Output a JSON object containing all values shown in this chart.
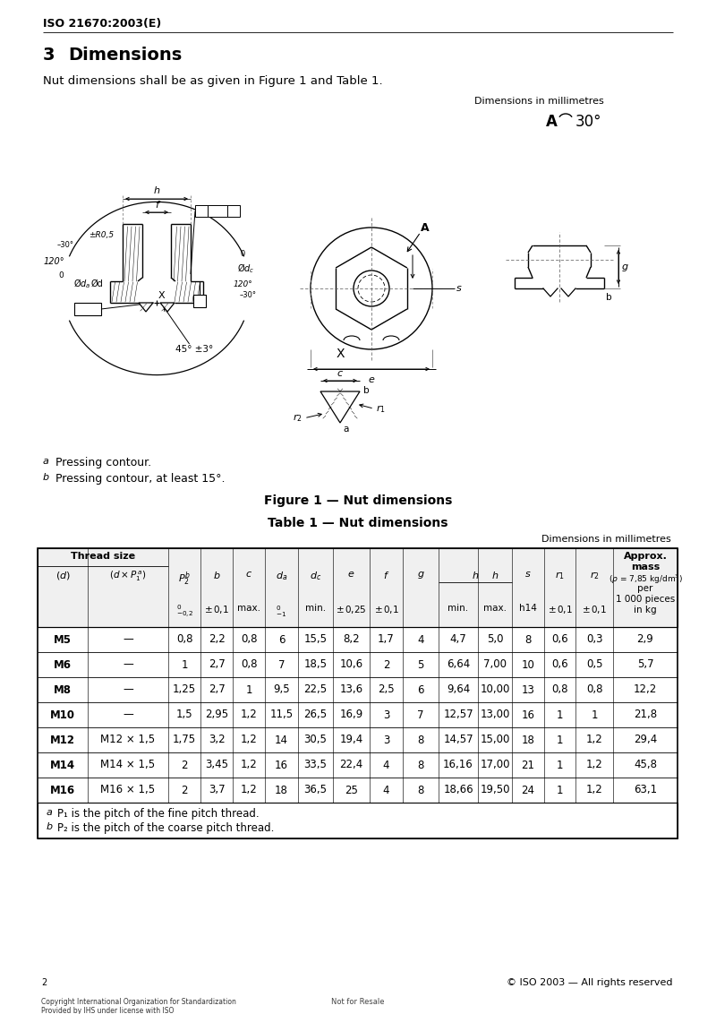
{
  "page_title": "ISO 21670:2003(E)",
  "section_number": "3",
  "section_title": "Dimensions",
  "intro_text": "Nut dimensions shall be as given in Figure 1 and Table 1.",
  "dim_note": "Dimensions in millimetres",
  "figure_caption": "Figure 1 — Nut dimensions",
  "table_caption": "Table 1 — Nut dimensions",
  "table_dim_note": "Dimensions in millimetres",
  "footnote_a": "Pressing contour.",
  "footnote_b": "Pressing contour, at least 15°.",
  "table_footnote_a": "P₁ is the pitch of the fine pitch thread.",
  "table_footnote_b": "P₂ is the pitch of the coarse pitch thread.",
  "data_rows": [
    [
      "M5",
      "—",
      "0,8",
      "2,2",
      "0,8",
      "6",
      "15,5",
      "8,2",
      "1,7",
      "4",
      "4,7",
      "5,0",
      "8",
      "0,6",
      "0,3",
      "2,9"
    ],
    [
      "M6",
      "—",
      "1",
      "2,7",
      "0,8",
      "7",
      "18,5",
      "10,6",
      "2",
      "5",
      "6,64",
      "7,00",
      "10",
      "0,6",
      "0,5",
      "5,7"
    ],
    [
      "M8",
      "—",
      "1,25",
      "2,7",
      "1",
      "9,5",
      "22,5",
      "13,6",
      "2,5",
      "6",
      "9,64",
      "10,00",
      "13",
      "0,8",
      "0,8",
      "12,2"
    ],
    [
      "M10",
      "—",
      "1,5",
      "2,95",
      "1,2",
      "11,5",
      "26,5",
      "16,9",
      "3",
      "7",
      "12,57",
      "13,00",
      "16",
      "1",
      "1",
      "21,8"
    ],
    [
      "M12",
      "M12 × 1,5",
      "1,75",
      "3,2",
      "1,2",
      "14",
      "30,5",
      "19,4",
      "3",
      "8",
      "14,57",
      "15,00",
      "18",
      "1",
      "1,2",
      "29,4"
    ],
    [
      "M14",
      "M14 × 1,5",
      "2",
      "3,45",
      "1,2",
      "16",
      "33,5",
      "22,4",
      "4",
      "8",
      "16,16",
      "17,00",
      "21",
      "1",
      "1,2",
      "45,8"
    ],
    [
      "M16",
      "M16 × 1,5",
      "2",
      "3,7",
      "1,2",
      "18",
      "36,5",
      "25",
      "4",
      "8",
      "18,66",
      "19,50",
      "24",
      "1",
      "1,2",
      "63,1"
    ]
  ],
  "bg_color": "#ffffff"
}
